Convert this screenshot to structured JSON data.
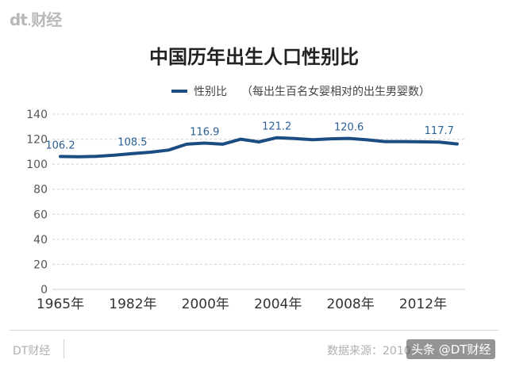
{
  "header": {
    "logo": "dt",
    "logo_suffix": "财经"
  },
  "chart_data": {
    "type": "line",
    "title": "中国历年出生人口性别比",
    "legend": {
      "name": "性别比",
      "note": "（每出生百名女婴相对的出生男婴数）"
    },
    "x_tick_labels": [
      "1965年",
      "1982年",
      "2000年",
      "2004年",
      "2008年",
      "2012年"
    ],
    "yticks": [
      0,
      20,
      40,
      60,
      80,
      100,
      120,
      140
    ],
    "ylim": [
      0,
      140
    ],
    "grid": true,
    "series": [
      {
        "name": "性别比",
        "color": "#1c4d82",
        "values": [
          106.2,
          106.0,
          106.3,
          107.2,
          108.5,
          109.6,
          111.3,
          116.0,
          116.9,
          116.0,
          120.0,
          117.8,
          121.2,
          120.5,
          119.6,
          120.3,
          120.6,
          119.5,
          118.1,
          118.1,
          117.9,
          117.7,
          116.2
        ]
      }
    ],
    "data_labels": [
      {
        "index": 0,
        "text": "106.2"
      },
      {
        "index": 4,
        "text": "108.5"
      },
      {
        "index": 8,
        "text": "116.9"
      },
      {
        "index": 12,
        "text": "121.2"
      },
      {
        "index": 16,
        "text": "120.6"
      },
      {
        "index": 21,
        "text": "117.7"
      }
    ]
  },
  "footer": {
    "brand": "DT财经",
    "source": "数据来源：2010",
    "watermark": "头条 @DT财经"
  }
}
